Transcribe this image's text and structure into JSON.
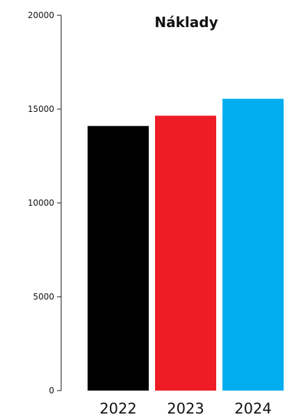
{
  "chart_data": {
    "type": "bar",
    "title": "Náklady",
    "xlabel": "",
    "ylabel": "",
    "categories": [
      "2022",
      "2023",
      "2024"
    ],
    "values": [
      14100,
      14650,
      15550
    ],
    "colors": [
      "#000000",
      "#ee1c25",
      "#00aeef"
    ],
    "ylim": [
      0,
      20000
    ],
    "yticks": [
      0,
      5000,
      10000,
      15000,
      20000
    ],
    "grid": false,
    "legend": "none"
  }
}
